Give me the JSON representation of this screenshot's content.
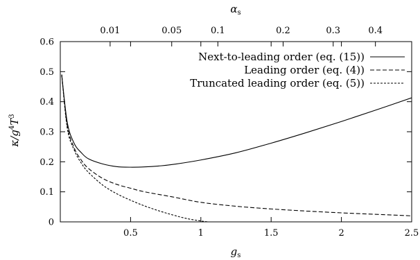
{
  "chart_data": {
    "type": "line",
    "xlabel": "g_s",
    "ylabel": "κ/g⁴T³",
    "top_xlabel": "α_s",
    "xlim": [
      0,
      2.5
    ],
    "ylim": [
      0,
      0.6
    ],
    "x_ticks": [
      0.5,
      1,
      1.5,
      2,
      2.5
    ],
    "x_tick_labels": [
      "0.5",
      "1",
      "1.5",
      "2",
      "2.5"
    ],
    "y_ticks": [
      0,
      0.1,
      0.2,
      0.3,
      0.4,
      0.5,
      0.6
    ],
    "y_tick_labels": [
      "0",
      "0.1",
      "0.2",
      "0.3",
      "0.4",
      "0.5",
      "0.6"
    ],
    "top_ticks": [
      0.01,
      0.05,
      0.1,
      0.2,
      0.3,
      0.4
    ],
    "top_tick_labels": [
      "0.01",
      "0.05",
      "0.1",
      "0.2",
      "0.3",
      "0.4"
    ],
    "top_axis_relation": "α_s = g_s²/(4π)",
    "grid": false,
    "legend_position": "top-right",
    "series": [
      {
        "name": "Next-to-leading order (eq. (15))",
        "style": "solid",
        "x": [
          0.01,
          0.05,
          0.1,
          0.15,
          0.2,
          0.3,
          0.4,
          0.5,
          0.6,
          0.7,
          0.8,
          1.0,
          1.25,
          1.5,
          1.75,
          2.0,
          2.25,
          2.5
        ],
        "y": [
          0.49,
          0.33,
          0.26,
          0.23,
          0.21,
          0.193,
          0.184,
          0.182,
          0.183,
          0.186,
          0.191,
          0.206,
          0.23,
          0.262,
          0.297,
          0.334,
          0.373,
          0.413
        ]
      },
      {
        "name": "Leading order (eq. (4))",
        "style": "dashed",
        "x": [
          0.01,
          0.05,
          0.1,
          0.15,
          0.2,
          0.3,
          0.4,
          0.5,
          0.6,
          0.8,
          1.0,
          1.25,
          1.5,
          1.75,
          2.0,
          2.25,
          2.5
        ],
        "y": [
          0.49,
          0.32,
          0.245,
          0.205,
          0.178,
          0.145,
          0.125,
          0.112,
          0.1,
          0.083,
          0.065,
          0.052,
          0.043,
          0.036,
          0.03,
          0.025,
          0.02
        ]
      },
      {
        "name": "Truncated leading order (eq. (5))",
        "style": "dotted",
        "x": [
          0.01,
          0.05,
          0.1,
          0.15,
          0.2,
          0.3,
          0.4,
          0.5,
          0.6,
          0.7,
          0.8,
          0.9,
          1.0,
          1.05
        ],
        "y": [
          0.49,
          0.31,
          0.238,
          0.195,
          0.165,
          0.123,
          0.094,
          0.072,
          0.053,
          0.037,
          0.023,
          0.011,
          0.003,
          0.0
        ]
      }
    ]
  }
}
